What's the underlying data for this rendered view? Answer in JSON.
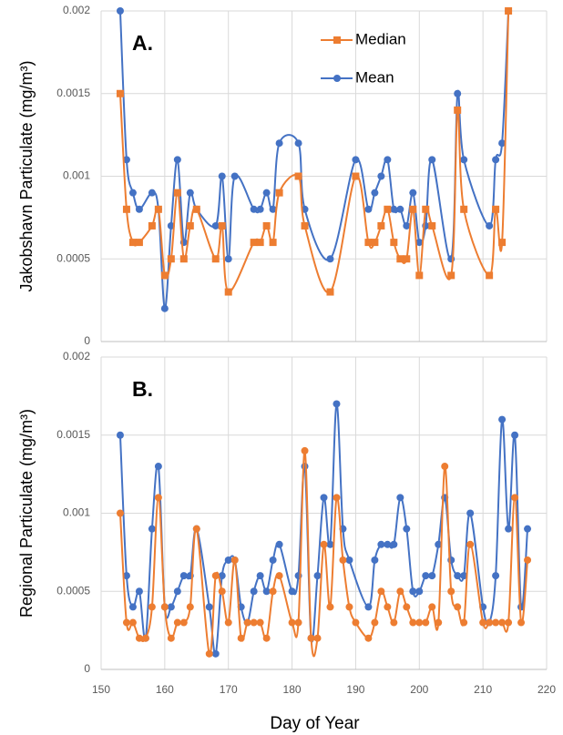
{
  "chart_data": [
    {
      "type": "line",
      "annotation": "A.",
      "ylabel": "Jakobshavn Particulate (mg/m³)",
      "xlim": [
        150,
        220
      ],
      "xticks": [
        150,
        160,
        170,
        180,
        190,
        200,
        210,
        220
      ],
      "ylim": [
        0,
        0.002
      ],
      "yticks": [
        0,
        0.0005,
        0.001,
        0.0015,
        0.002
      ],
      "grid": true,
      "legend": "top",
      "series": [
        {
          "name": "Median",
          "color": "#ed7d31",
          "marker": "square",
          "x": [
            153,
            154,
            155,
            156,
            158,
            159,
            160,
            161,
            162,
            163,
            164,
            165,
            168,
            169,
            170,
            174,
            175,
            176,
            177,
            178,
            181,
            182,
            186,
            190,
            192,
            193,
            194,
            195,
            196,
            197,
            198,
            199,
            200,
            201,
            202,
            205,
            206,
            207,
            211,
            212,
            213,
            214
          ],
          "values": [
            0.0015,
            0.0008,
            0.0006,
            0.0006,
            0.0007,
            0.0008,
            0.0004,
            0.0005,
            0.0009,
            0.0005,
            0.0007,
            0.0008,
            0.0005,
            0.0007,
            0.0003,
            0.0006,
            0.0006,
            0.0007,
            0.0006,
            0.0009,
            0.001,
            0.0007,
            0.0003,
            0.001,
            0.0006,
            0.0006,
            0.0007,
            0.0008,
            0.0006,
            0.0005,
            0.0005,
            0.0008,
            0.0004,
            0.0008,
            0.0007,
            0.0004,
            0.0014,
            0.0008,
            0.0004,
            0.0008,
            0.0006,
            0.002
          ]
        },
        {
          "name": "Mean",
          "color": "#4472c4",
          "marker": "circle",
          "x": [
            153,
            154,
            155,
            156,
            158,
            159,
            160,
            161,
            162,
            163,
            164,
            165,
            168,
            169,
            170,
            171,
            174,
            175,
            176,
            177,
            178,
            181,
            182,
            186,
            190,
            192,
            193,
            194,
            195,
            196,
            197,
            198,
            199,
            200,
            201,
            202,
            205,
            206,
            207,
            211,
            212,
            213,
            214
          ],
          "values": [
            0.002,
            0.0011,
            0.0009,
            0.0008,
            0.0009,
            0.0008,
            0.0002,
            0.0007,
            0.0011,
            0.0006,
            0.0009,
            0.0008,
            0.0007,
            0.001,
            0.0005,
            0.001,
            0.0008,
            0.0008,
            0.0009,
            0.0008,
            0.0012,
            0.0012,
            0.0008,
            0.0005,
            0.0011,
            0.0008,
            0.0009,
            0.001,
            0.0011,
            0.0008,
            0.0008,
            0.0007,
            0.0009,
            0.0006,
            0.0007,
            0.0011,
            0.0005,
            0.0015,
            0.0011,
            0.0007,
            0.0011,
            0.0012,
            0.002
          ]
        }
      ]
    },
    {
      "type": "line",
      "annotation": "B.",
      "ylabel": "Regional Particulate (mg/m³)",
      "xlabel": "Day of Year",
      "xlim": [
        150,
        220
      ],
      "xticks": [
        150,
        160,
        170,
        180,
        190,
        200,
        210,
        220
      ],
      "ylim": [
        0,
        0.002
      ],
      "yticks": [
        0,
        0.0005,
        0.001,
        0.0015,
        0.002
      ],
      "grid": true,
      "series": [
        {
          "name": "Median",
          "color": "#ed7d31",
          "marker": "circle",
          "x": [
            153,
            154,
            155,
            156,
            157,
            158,
            159,
            160,
            161,
            162,
            163,
            164,
            165,
            167,
            168,
            169,
            170,
            171,
            172,
            173,
            174,
            175,
            176,
            177,
            178,
            180,
            181,
            182,
            183,
            184,
            185,
            186,
            187,
            188,
            189,
            190,
            192,
            193,
            194,
            195,
            196,
            197,
            198,
            199,
            200,
            201,
            202,
            203,
            204,
            205,
            206,
            207,
            208,
            210,
            211,
            212,
            213,
            214,
            215,
            216,
            217
          ],
          "values": [
            0.001,
            0.0003,
            0.0003,
            0.0002,
            0.0002,
            0.0004,
            0.0011,
            0.0004,
            0.0002,
            0.0003,
            0.0003,
            0.0004,
            0.0009,
            0.0001,
            0.0006,
            0.0005,
            0.0003,
            0.0007,
            0.0002,
            0.0003,
            0.0003,
            0.0003,
            0.0002,
            0.0005,
            0.0006,
            0.0003,
            0.0003,
            0.0014,
            0.0002,
            0.0002,
            0.0008,
            0.0004,
            0.0011,
            0.0007,
            0.0004,
            0.0003,
            0.0002,
            0.0003,
            0.0005,
            0.0004,
            0.0003,
            0.0005,
            0.0004,
            0.0003,
            0.0003,
            0.0003,
            0.0004,
            0.0003,
            0.0013,
            0.0005,
            0.0004,
            0.0003,
            0.0008,
            0.0003,
            0.0003,
            0.0003,
            0.0003,
            0.0003,
            0.0011,
            0.0003,
            0.0007
          ]
        },
        {
          "name": "Mean",
          "color": "#4472c4",
          "marker": "circle",
          "x": [
            153,
            154,
            155,
            156,
            157,
            158,
            159,
            160,
            161,
            162,
            163,
            164,
            165,
            167,
            168,
            169,
            170,
            171,
            172,
            173,
            174,
            175,
            176,
            177,
            178,
            180,
            181,
            182,
            183,
            184,
            185,
            186,
            187,
            188,
            189,
            192,
            193,
            194,
            195,
            196,
            197,
            198,
            199,
            200,
            201,
            202,
            203,
            204,
            205,
            206,
            207,
            208,
            210,
            211,
            212,
            213,
            214,
            215,
            216,
            217
          ],
          "values": [
            0.0015,
            0.0006,
            0.0004,
            0.0005,
            0.0002,
            0.0009,
            0.0013,
            0.0004,
            0.0004,
            0.0005,
            0.0006,
            0.0006,
            0.0009,
            0.0004,
            0.0001,
            0.0006,
            0.0007,
            0.0007,
            0.0004,
            0.0003,
            0.0005,
            0.0006,
            0.0005,
            0.0007,
            0.0008,
            0.0005,
            0.0006,
            0.0013,
            0.0002,
            0.0006,
            0.0011,
            0.0008,
            0.0017,
            0.0009,
            0.0007,
            0.0004,
            0.0007,
            0.0008,
            0.0008,
            0.0008,
            0.0011,
            0.0009,
            0.0005,
            0.0005,
            0.0006,
            0.0006,
            0.0008,
            0.0011,
            0.0007,
            0.0006,
            0.0006,
            0.001,
            0.0004,
            0.0003,
            0.0006,
            0.0016,
            0.0009,
            0.0015,
            0.0004,
            0.0009
          ]
        }
      ]
    }
  ]
}
